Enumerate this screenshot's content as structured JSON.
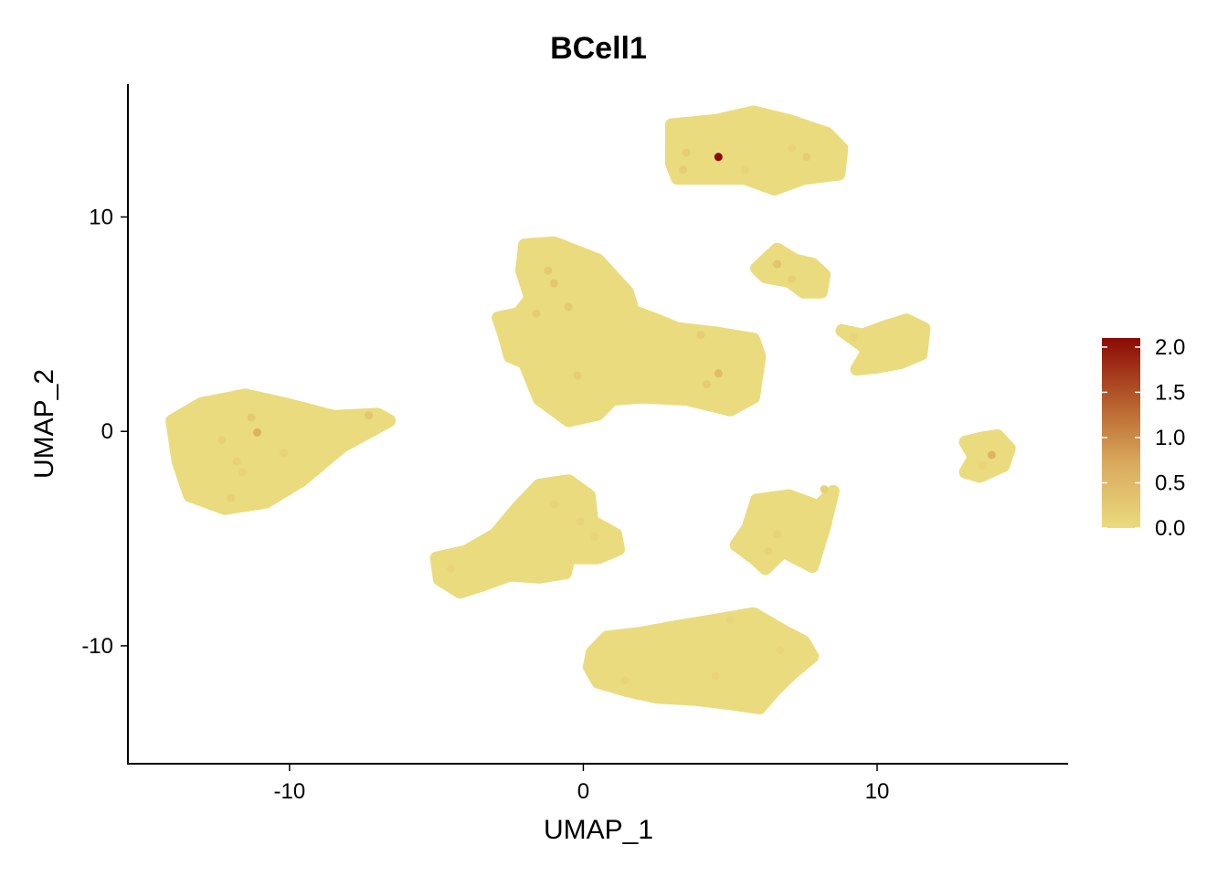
{
  "chart_data": {
    "type": "scatter",
    "title": "BCell1",
    "xlabel": "UMAP_1",
    "ylabel": "UMAP_2",
    "xlim": [
      -15.5,
      16.5
    ],
    "ylim": [
      -15.5,
      16.2
    ],
    "x_ticks": [
      -10,
      0,
      10
    ],
    "x_tick_labels": [
      "-10",
      "0",
      "10"
    ],
    "y_ticks": [
      10,
      0,
      -10
    ],
    "y_tick_labels": [
      "10",
      "0",
      "-10"
    ],
    "grid": false,
    "legend": {
      "position": "right",
      "type": "colorbar",
      "min": 0,
      "max": 2.1,
      "ticks": [
        2.0,
        1.5,
        1.0,
        0.5,
        0.0
      ],
      "tick_labels": [
        "2.0",
        "1.5",
        "1.0",
        "0.5",
        "0.0"
      ],
      "low_color": "#EADB7E",
      "mid_color": "#C98A45",
      "high_color": "#8B0A05"
    },
    "clusters": [
      {
        "name": "",
        "outline": [
          [
            -14.0,
            0.5
          ],
          [
            -13.0,
            1.3
          ],
          [
            -11.5,
            1.7
          ],
          [
            -10.2,
            1.3
          ],
          [
            -8.5,
            0.7
          ],
          [
            -7.0,
            0.8
          ],
          [
            -6.6,
            0.5
          ],
          [
            -8.2,
            -0.7
          ],
          [
            -9.6,
            -2.3
          ],
          [
            -10.8,
            -3.3
          ],
          [
            -12.2,
            -3.6
          ],
          [
            -13.4,
            -3.0
          ],
          [
            -13.8,
            -1.4
          ]
        ]
      },
      {
        "name": "",
        "outline": [
          [
            -2.0,
            8.7
          ],
          [
            -1.0,
            8.8
          ],
          [
            0.5,
            8.0
          ],
          [
            1.5,
            6.5
          ],
          [
            1.7,
            5.6
          ],
          [
            2.5,
            5.2
          ],
          [
            3.2,
            4.8
          ],
          [
            4.5,
            4.6
          ],
          [
            5.8,
            4.3
          ],
          [
            6.0,
            3.5
          ],
          [
            5.8,
            1.6
          ],
          [
            5.0,
            1.0
          ],
          [
            3.5,
            1.5
          ],
          [
            2.0,
            1.6
          ],
          [
            1.0,
            1.5
          ],
          [
            0.5,
            0.8
          ],
          [
            -0.5,
            0.5
          ],
          [
            -1.5,
            1.5
          ],
          [
            -1.8,
            2.5
          ],
          [
            -2.0,
            3.2
          ],
          [
            -2.5,
            3.5
          ],
          [
            -2.7,
            4.5
          ],
          [
            -2.9,
            5.3
          ],
          [
            -2.2,
            5.5
          ],
          [
            -1.8,
            6.2
          ],
          [
            -2.1,
            7.5
          ]
        ]
      },
      {
        "name": "",
        "outline": [
          [
            3.0,
            14.3
          ],
          [
            4.5,
            14.5
          ],
          [
            5.8,
            14.9
          ],
          [
            7.0,
            14.5
          ],
          [
            8.3,
            13.9
          ],
          [
            8.8,
            13.2
          ],
          [
            8.7,
            12.0
          ],
          [
            7.5,
            11.8
          ],
          [
            6.5,
            11.3
          ],
          [
            5.5,
            11.8
          ],
          [
            4.2,
            11.8
          ],
          [
            3.2,
            11.8
          ],
          [
            3.0,
            12.5
          ]
        ]
      },
      {
        "name": "",
        "outline": [
          [
            6.2,
            8.0
          ],
          [
            6.6,
            8.5
          ],
          [
            7.2,
            8.0
          ],
          [
            7.8,
            7.8
          ],
          [
            8.2,
            7.3
          ],
          [
            8.1,
            6.5
          ],
          [
            7.5,
            6.5
          ],
          [
            7.0,
            7.0
          ],
          [
            6.2,
            7.2
          ],
          [
            5.9,
            7.6
          ]
        ]
      },
      {
        "name": "",
        "outline": [
          [
            9.5,
            4.5
          ],
          [
            10.3,
            4.9
          ],
          [
            11.0,
            5.2
          ],
          [
            11.6,
            4.8
          ],
          [
            11.5,
            3.6
          ],
          [
            10.8,
            3.2
          ],
          [
            10.0,
            3.0
          ],
          [
            9.3,
            2.9
          ],
          [
            9.7,
            3.8
          ],
          [
            8.8,
            4.7
          ]
        ]
      },
      {
        "name": "",
        "outline": [
          [
            13.0,
            -0.5
          ],
          [
            13.6,
            -0.3
          ],
          [
            14.1,
            -0.2
          ],
          [
            14.5,
            -0.8
          ],
          [
            14.3,
            -1.6
          ],
          [
            13.5,
            -2.1
          ],
          [
            13.0,
            -1.9
          ],
          [
            13.3,
            -1.2
          ]
        ]
      },
      {
        "name": "",
        "outline": [
          [
            -1.5,
            -2.5
          ],
          [
            -0.5,
            -2.3
          ],
          [
            0.2,
            -3.0
          ],
          [
            0.3,
            -4.2
          ],
          [
            1.1,
            -4.8
          ],
          [
            1.2,
            -5.5
          ],
          [
            0.5,
            -5.9
          ],
          [
            -0.5,
            -5.9
          ],
          [
            -0.6,
            -6.6
          ],
          [
            -1.5,
            -6.8
          ],
          [
            -2.5,
            -6.7
          ],
          [
            -3.5,
            -7.2
          ],
          [
            -4.2,
            -7.5
          ],
          [
            -4.9,
            -6.9
          ],
          [
            -5.0,
            -5.9
          ],
          [
            -4.0,
            -5.6
          ],
          [
            -3.0,
            -4.8
          ],
          [
            -2.2,
            -3.5
          ]
        ]
      },
      {
        "name": "",
        "outline": [
          [
            5.9,
            -3.2
          ],
          [
            7.0,
            -3.0
          ],
          [
            8.0,
            -3.5
          ],
          [
            8.5,
            -2.8
          ],
          [
            8.2,
            -4.5
          ],
          [
            7.8,
            -6.3
          ],
          [
            6.8,
            -5.6
          ],
          [
            6.2,
            -6.4
          ],
          [
            5.8,
            -5.9
          ],
          [
            5.2,
            -5.3
          ],
          [
            5.6,
            -4.5
          ]
        ]
      },
      {
        "name": "",
        "outline": [
          [
            0.3,
            -10.3
          ],
          [
            0.8,
            -9.6
          ],
          [
            2.0,
            -9.4
          ],
          [
            3.2,
            -9.1
          ],
          [
            4.5,
            -8.8
          ],
          [
            5.8,
            -8.5
          ],
          [
            6.8,
            -9.3
          ],
          [
            7.5,
            -9.8
          ],
          [
            7.8,
            -10.5
          ],
          [
            7.1,
            -11.3
          ],
          [
            6.5,
            -12.1
          ],
          [
            6.0,
            -12.9
          ],
          [
            5.0,
            -12.7
          ],
          [
            3.8,
            -12.5
          ],
          [
            2.5,
            -12.4
          ],
          [
            1.5,
            -12.1
          ],
          [
            0.5,
            -11.7
          ],
          [
            0.2,
            -11.0
          ]
        ]
      }
    ],
    "cells": [
      {
        "x": 4.6,
        "y": 12.8,
        "value": 2.1
      },
      {
        "x": -11.1,
        "y": -0.05,
        "value": 0.6
      },
      {
        "x": 13.9,
        "y": -1.1,
        "value": 0.55
      },
      {
        "x": 4.6,
        "y": 2.7,
        "value": 0.45
      },
      {
        "x": 6.6,
        "y": 7.8,
        "value": 0.35
      },
      {
        "x": -7.3,
        "y": 0.75,
        "value": 0.3
      },
      {
        "x": -1.0,
        "y": 6.9,
        "value": 0.3
      },
      {
        "x": -11.3,
        "y": 0.65,
        "value": 0.25
      },
      {
        "x": -1.2,
        "y": 7.5,
        "value": 0.25
      },
      {
        "x": -0.5,
        "y": 5.8,
        "value": 0.25
      },
      {
        "x": 3.5,
        "y": 13.0,
        "value": 0.2
      },
      {
        "x": 7.6,
        "y": 12.8,
        "value": 0.2
      },
      {
        "x": -1.6,
        "y": 5.5,
        "value": 0.2
      },
      {
        "x": 4.0,
        "y": 4.5,
        "value": 0.2
      },
      {
        "x": 4.2,
        "y": 2.2,
        "value": 0.2
      },
      {
        "x": -0.2,
        "y": 2.6,
        "value": 0.2
      },
      {
        "x": 3.4,
        "y": 12.2,
        "value": 0.2
      },
      {
        "x": 7.1,
        "y": 7.1,
        "value": 0.15
      },
      {
        "x": 8.2,
        "y": -2.7,
        "value": 0.15
      },
      {
        "x": -12.3,
        "y": -0.4,
        "value": 0.15
      },
      {
        "x": -11.8,
        "y": -1.4,
        "value": 0.15
      },
      {
        "x": -12.0,
        "y": -3.1,
        "value": 0.15
      },
      {
        "x": -10.2,
        "y": -1.0,
        "value": 0.12
      },
      {
        "x": -11.6,
        "y": -1.9,
        "value": 0.12
      },
      {
        "x": 6.3,
        "y": -5.6,
        "value": 0.12
      },
      {
        "x": 6.6,
        "y": -4.8,
        "value": 0.12
      },
      {
        "x": 0.4,
        "y": -4.9,
        "value": 0.1
      },
      {
        "x": -0.1,
        "y": -4.2,
        "value": 0.1
      },
      {
        "x": 1.4,
        "y": -11.6,
        "value": 0.1
      },
      {
        "x": 4.5,
        "y": -11.4,
        "value": 0.08
      },
      {
        "x": 5.0,
        "y": -8.8,
        "value": 0.08
      },
      {
        "x": 6.7,
        "y": -10.2,
        "value": 0.08
      },
      {
        "x": -4.5,
        "y": -6.4,
        "value": 0.1
      },
      {
        "x": -1.0,
        "y": -3.4,
        "value": 0.1
      },
      {
        "x": 13.6,
        "y": -1.6,
        "value": 0.1
      },
      {
        "x": 9.2,
        "y": 4.4,
        "value": 0.1
      },
      {
        "x": 5.5,
        "y": 12.2,
        "value": 0.1
      },
      {
        "x": 7.1,
        "y": 13.2,
        "value": 0.1
      }
    ]
  }
}
